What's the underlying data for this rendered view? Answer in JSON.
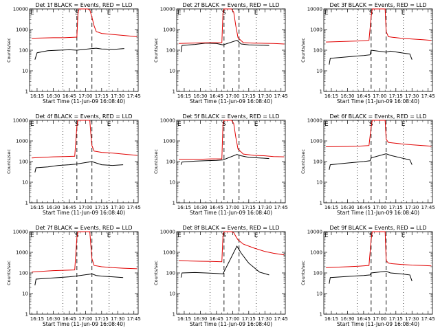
{
  "figure": {
    "xtick_labels": [
      "16:15",
      "16:30",
      "16:45",
      "17:00",
      "17:15",
      "17:30",
      "17:45"
    ],
    "ytick_labels": [
      "1",
      "10",
      "100",
      "1000",
      "10000"
    ],
    "ylabel": "Counts/sec",
    "xlabel": "Start Time (11-Jun-09 16:08:40)",
    "event_markers": [
      "E",
      "S",
      "E"
    ],
    "colors": {
      "events": "#000000",
      "lld": "#e00000",
      "axes": "#000000",
      "dotted": "#000000",
      "dashed": "#000000"
    }
  },
  "chart_data": [
    {
      "type": "line",
      "title": "Det 1f BLACK = Events, RED = LLD",
      "xlabel": "Start Time (11-Jun-09 16:08:40)",
      "ylabel": "Counts/sec",
      "ylog": true,
      "ylim": [
        1,
        10000
      ],
      "xrange_minutes": [
        "16:08",
        "17:49"
      ],
      "dotted_lines": [
        "16:39",
        "17:22"
      ],
      "dashed_lines": [
        "16:52",
        "17:06"
      ],
      "series": [
        {
          "name": "BLACK = Events",
          "color": "#000000",
          "x": [
            "16:13",
            "16:15",
            "16:25",
            "16:35",
            "16:45",
            "16:52",
            "17:06",
            "17:10",
            "17:15",
            "17:27",
            "17:36"
          ],
          "y": [
            35,
            75,
            95,
            100,
            105,
            100,
            120,
            125,
            115,
            110,
            120
          ]
        },
        {
          "name": "RED = LLD",
          "color": "#e00000",
          "x": [
            "16:10",
            "16:20",
            "16:30",
            "16:40",
            "16:52",
            "16:53",
            "16:54",
            "17:02",
            "17:04",
            "17:06",
            "17:08",
            "17:10",
            "17:15",
            "17:25",
            "17:35",
            "17:48"
          ],
          "y": [
            380,
            390,
            400,
            400,
            430,
            6000,
            10000,
            11000,
            9000,
            4000,
            1500,
            800,
            650,
            580,
            520,
            450
          ]
        }
      ]
    },
    {
      "type": "line",
      "title": "Det 2f BLACK = Events, RED = LLD",
      "xlabel": "Start Time (11-Jun-09 16:08:40)",
      "ylabel": "Counts/sec",
      "ylog": true,
      "ylim": [
        1,
        10000
      ],
      "xrange_minutes": [
        "16:08",
        "17:49"
      ],
      "dotted_lines": [
        "16:39",
        "17:22"
      ],
      "dashed_lines": [
        "16:52",
        "17:06"
      ],
      "series": [
        {
          "name": "BLACK = Events",
          "color": "#000000",
          "x": [
            "16:12",
            "16:13",
            "16:25",
            "16:35",
            "16:45",
            "16:51",
            "17:04",
            "17:08",
            "17:15",
            "17:25",
            "17:34"
          ],
          "y": [
            80,
            170,
            190,
            220,
            210,
            180,
            300,
            200,
            180,
            175,
            170
          ]
        },
        {
          "name": "RED = LLD",
          "color": "#e00000",
          "x": [
            "16:10",
            "16:20",
            "16:30",
            "16:40",
            "16:50",
            "16:51",
            "16:52",
            "16:59",
            "17:01",
            "17:03",
            "17:05",
            "17:10",
            "17:20",
            "17:30",
            "17:38",
            "17:48"
          ],
          "y": [
            210,
            220,
            225,
            230,
            230,
            6000,
            10000,
            10500,
            7000,
            1500,
            400,
            230,
            220,
            215,
            210,
            200
          ]
        }
      ]
    },
    {
      "type": "line",
      "title": "Det 3f BLACK = Events, RED = LLD",
      "xlabel": "Start Time (11-Jun-09 16:08:40)",
      "ylabel": "Counts/sec",
      "ylog": true,
      "ylim": [
        1,
        10000
      ],
      "xrange_minutes": [
        "16:08",
        "17:49"
      ],
      "dotted_lines": [
        "16:39",
        "17:22"
      ],
      "dashed_lines": [
        "16:52",
        "17:06"
      ],
      "series": [
        {
          "name": "BLACK = Events",
          "color": "#000000",
          "x": [
            "16:13",
            "16:14",
            "16:25",
            "16:35",
            "16:45",
            "16:51",
            "16:52",
            "17:06",
            "17:10",
            "17:20",
            "17:28",
            "17:30"
          ],
          "y": [
            20,
            40,
            45,
            50,
            55,
            60,
            100,
            80,
            90,
            75,
            65,
            35
          ]
        },
        {
          "name": "RED = LLD",
          "color": "#e00000",
          "x": [
            "16:10",
            "16:20",
            "16:30",
            "16:40",
            "16:50",
            "16:52",
            "16:53",
            "17:05",
            "17:06",
            "17:08",
            "17:12",
            "17:20",
            "17:30",
            "17:40",
            "17:48"
          ],
          "y": [
            250,
            260,
            270,
            280,
            300,
            4000,
            10500,
            10500,
            800,
            450,
            420,
            380,
            350,
            320,
            300
          ]
        }
      ]
    },
    {
      "type": "line",
      "title": "Det 4f BLACK = Events, RED = LLD",
      "xlabel": "Start Time (11-Jun-09 16:08:40)",
      "ylabel": "Counts/sec",
      "ylog": true,
      "ylim": [
        1,
        10000
      ],
      "xrange_minutes": [
        "16:08",
        "17:49"
      ],
      "dotted_lines": [
        "16:39",
        "17:22"
      ],
      "dashed_lines": [
        "16:52",
        "17:06"
      ],
      "series": [
        {
          "name": "BLACK = Events",
          "color": "#000000",
          "x": [
            "16:13",
            "16:14",
            "16:25",
            "16:35",
            "16:45",
            "16:51",
            "17:06",
            "17:10",
            "17:15",
            "17:25",
            "17:35"
          ],
          "y": [
            30,
            50,
            55,
            65,
            70,
            75,
            100,
            85,
            70,
            65,
            70
          ]
        },
        {
          "name": "RED = LLD",
          "color": "#e00000",
          "x": [
            "16:10",
            "16:20",
            "16:30",
            "16:40",
            "16:50",
            "16:52",
            "16:53",
            "17:04",
            "17:05",
            "17:06",
            "17:08",
            "17:15",
            "17:25",
            "17:35",
            "17:48"
          ],
          "y": [
            150,
            160,
            170,
            175,
            180,
            5000,
            10500,
            10500,
            2000,
            600,
            320,
            280,
            260,
            230,
            200
          ]
        }
      ]
    },
    {
      "type": "line",
      "title": "Det 5f BLACK = Events, RED = LLD",
      "xlabel": "Start Time (11-Jun-09 16:08:40)",
      "ylabel": "Counts/sec",
      "ylog": true,
      "ylim": [
        1,
        10000
      ],
      "xrange_minutes": [
        "16:08",
        "17:49"
      ],
      "dotted_lines": [
        "16:39",
        "17:22"
      ],
      "dashed_lines": [
        "16:52",
        "17:06"
      ],
      "series": [
        {
          "name": "BLACK = Events",
          "color": "#000000",
          "x": [
            "16:12",
            "16:13",
            "16:25",
            "16:35",
            "16:45",
            "16:51",
            "17:04",
            "17:08",
            "17:15",
            "17:25",
            "17:34"
          ],
          "y": [
            70,
            95,
            105,
            110,
            115,
            120,
            220,
            190,
            160,
            150,
            140
          ]
        },
        {
          "name": "RED = LLD",
          "color": "#e00000",
          "x": [
            "16:10",
            "16:20",
            "16:30",
            "16:40",
            "16:50",
            "16:51",
            "16:52",
            "16:59",
            "17:01",
            "17:03",
            "17:05",
            "17:10",
            "17:20",
            "17:30",
            "17:38",
            "17:48"
          ],
          "y": [
            130,
            130,
            130,
            135,
            135,
            6000,
            10000,
            10500,
            7000,
            1500,
            400,
            230,
            200,
            190,
            175,
            170
          ]
        }
      ]
    },
    {
      "type": "line",
      "title": "Det 6f BLACK = Events, RED = LLD",
      "xlabel": "Start Time (11-Jun-09 16:08:40)",
      "ylabel": "Counts/sec",
      "ylog": true,
      "ylim": [
        1,
        10000
      ],
      "xrange_minutes": [
        "16:08",
        "17:49"
      ],
      "dotted_lines": [
        "16:39",
        "17:22"
      ],
      "dashed_lines": [
        "16:52",
        "17:06"
      ],
      "series": [
        {
          "name": "BLACK = Events",
          "color": "#000000",
          "x": [
            "16:13",
            "16:14",
            "16:25",
            "16:35",
            "16:45",
            "16:51",
            "16:52",
            "17:06",
            "17:10",
            "17:20",
            "17:28",
            "17:30"
          ],
          "y": [
            40,
            70,
            80,
            90,
            100,
            110,
            150,
            240,
            200,
            150,
            120,
            70
          ]
        },
        {
          "name": "RED = LLD",
          "color": "#e00000",
          "x": [
            "16:10",
            "16:20",
            "16:30",
            "16:40",
            "16:50",
            "16:52",
            "16:53",
            "17:05",
            "17:06",
            "17:08",
            "17:12",
            "17:20",
            "17:30",
            "17:40",
            "17:48"
          ],
          "y": [
            520,
            530,
            540,
            560,
            600,
            4500,
            10500,
            10500,
            1200,
            850,
            800,
            720,
            650,
            600,
            560
          ]
        }
      ]
    },
    {
      "type": "line",
      "title": "Det 7f BLACK = Events, RED = LLD",
      "xlabel": "Start Time (11-Jun-09 16:08:40)",
      "ylabel": "Counts/sec",
      "ylog": true,
      "ylim": [
        1,
        10000
      ],
      "xrange_minutes": [
        "16:08",
        "17:49"
      ],
      "dotted_lines": [
        "16:39",
        "17:22"
      ],
      "dashed_lines": [
        "16:52",
        "17:06"
      ],
      "series": [
        {
          "name": "BLACK = Events",
          "color": "#000000",
          "x": [
            "16:13",
            "16:14",
            "16:25",
            "16:35",
            "16:45",
            "16:51",
            "17:06",
            "17:10",
            "17:15",
            "17:25",
            "17:35"
          ],
          "y": [
            25,
            50,
            55,
            60,
            65,
            70,
            90,
            75,
            70,
            65,
            60
          ]
        },
        {
          "name": "RED = LLD",
          "color": "#e00000",
          "x": [
            "16:10",
            "16:20",
            "16:30",
            "16:40",
            "16:50",
            "16:52",
            "16:53",
            "17:04",
            "17:05",
            "17:06",
            "17:08",
            "17:15",
            "17:25",
            "17:35",
            "17:48"
          ],
          "y": [
            110,
            120,
            130,
            135,
            140,
            5000,
            10500,
            10500,
            2000,
            500,
            230,
            200,
            180,
            170,
            160
          ]
        }
      ]
    },
    {
      "type": "line",
      "title": "Det 8f BLACK = Events, RED = LLD",
      "xlabel": "Start Time (11-Jun-09 16:08:40)",
      "ylabel": "Counts/sec",
      "ylog": true,
      "ylim": [
        1,
        10000
      ],
      "xrange_minutes": [
        "16:08",
        "17:49"
      ],
      "dotted_lines": [
        "16:39",
        "17:22"
      ],
      "dashed_lines": [
        "16:52",
        "17:06"
      ],
      "series": [
        {
          "name": "BLACK = Events",
          "color": "#000000",
          "x": [
            "16:12",
            "16:13",
            "16:25",
            "16:35",
            "16:45",
            "16:51",
            "17:04",
            "17:08",
            "17:15",
            "17:25",
            "17:34"
          ],
          "y": [
            60,
            100,
            105,
            100,
            95,
            90,
            2000,
            900,
            300,
            110,
            80
          ]
        },
        {
          "name": "RED = LLD",
          "color": "#e00000",
          "x": [
            "16:10",
            "16:20",
            "16:30",
            "16:40",
            "16:50",
            "16:51",
            "16:52",
            "16:59",
            "17:01",
            "17:03",
            "17:05",
            "17:10",
            "17:20",
            "17:30",
            "17:38",
            "17:48"
          ],
          "y": [
            400,
            380,
            370,
            360,
            350,
            6000,
            10000,
            10500,
            9000,
            6000,
            4000,
            2500,
            1600,
            1100,
            900,
            750
          ]
        }
      ]
    },
    {
      "type": "line",
      "title": "Det 9f BLACK = Events, RED = LLD",
      "xlabel": "Start Time (11-Jun-09 16:08:40)",
      "ylabel": "Counts/sec",
      "ylog": true,
      "ylim": [
        1,
        10000
      ],
      "xrange_minutes": [
        "16:08",
        "17:49"
      ],
      "dotted_lines": [
        "16:39",
        "17:22"
      ],
      "dashed_lines": [
        "16:52",
        "17:06"
      ],
      "series": [
        {
          "name": "BLACK = Events",
          "color": "#000000",
          "x": [
            "16:13",
            "16:14",
            "16:25",
            "16:35",
            "16:45",
            "16:51",
            "16:52",
            "17:06",
            "17:10",
            "17:20",
            "17:28",
            "17:30"
          ],
          "y": [
            30,
            60,
            65,
            70,
            75,
            80,
            100,
            120,
            100,
            90,
            80,
            40
          ]
        },
        {
          "name": "RED = LLD",
          "color": "#e00000",
          "x": [
            "16:10",
            "16:20",
            "16:30",
            "16:40",
            "16:50",
            "16:52",
            "16:53",
            "17:05",
            "17:06",
            "17:08",
            "17:12",
            "17:20",
            "17:30",
            "17:40",
            "17:48"
          ],
          "y": [
            180,
            190,
            200,
            210,
            230,
            4000,
            10500,
            10500,
            400,
            300,
            280,
            260,
            240,
            230,
            220
          ]
        }
      ]
    }
  ]
}
